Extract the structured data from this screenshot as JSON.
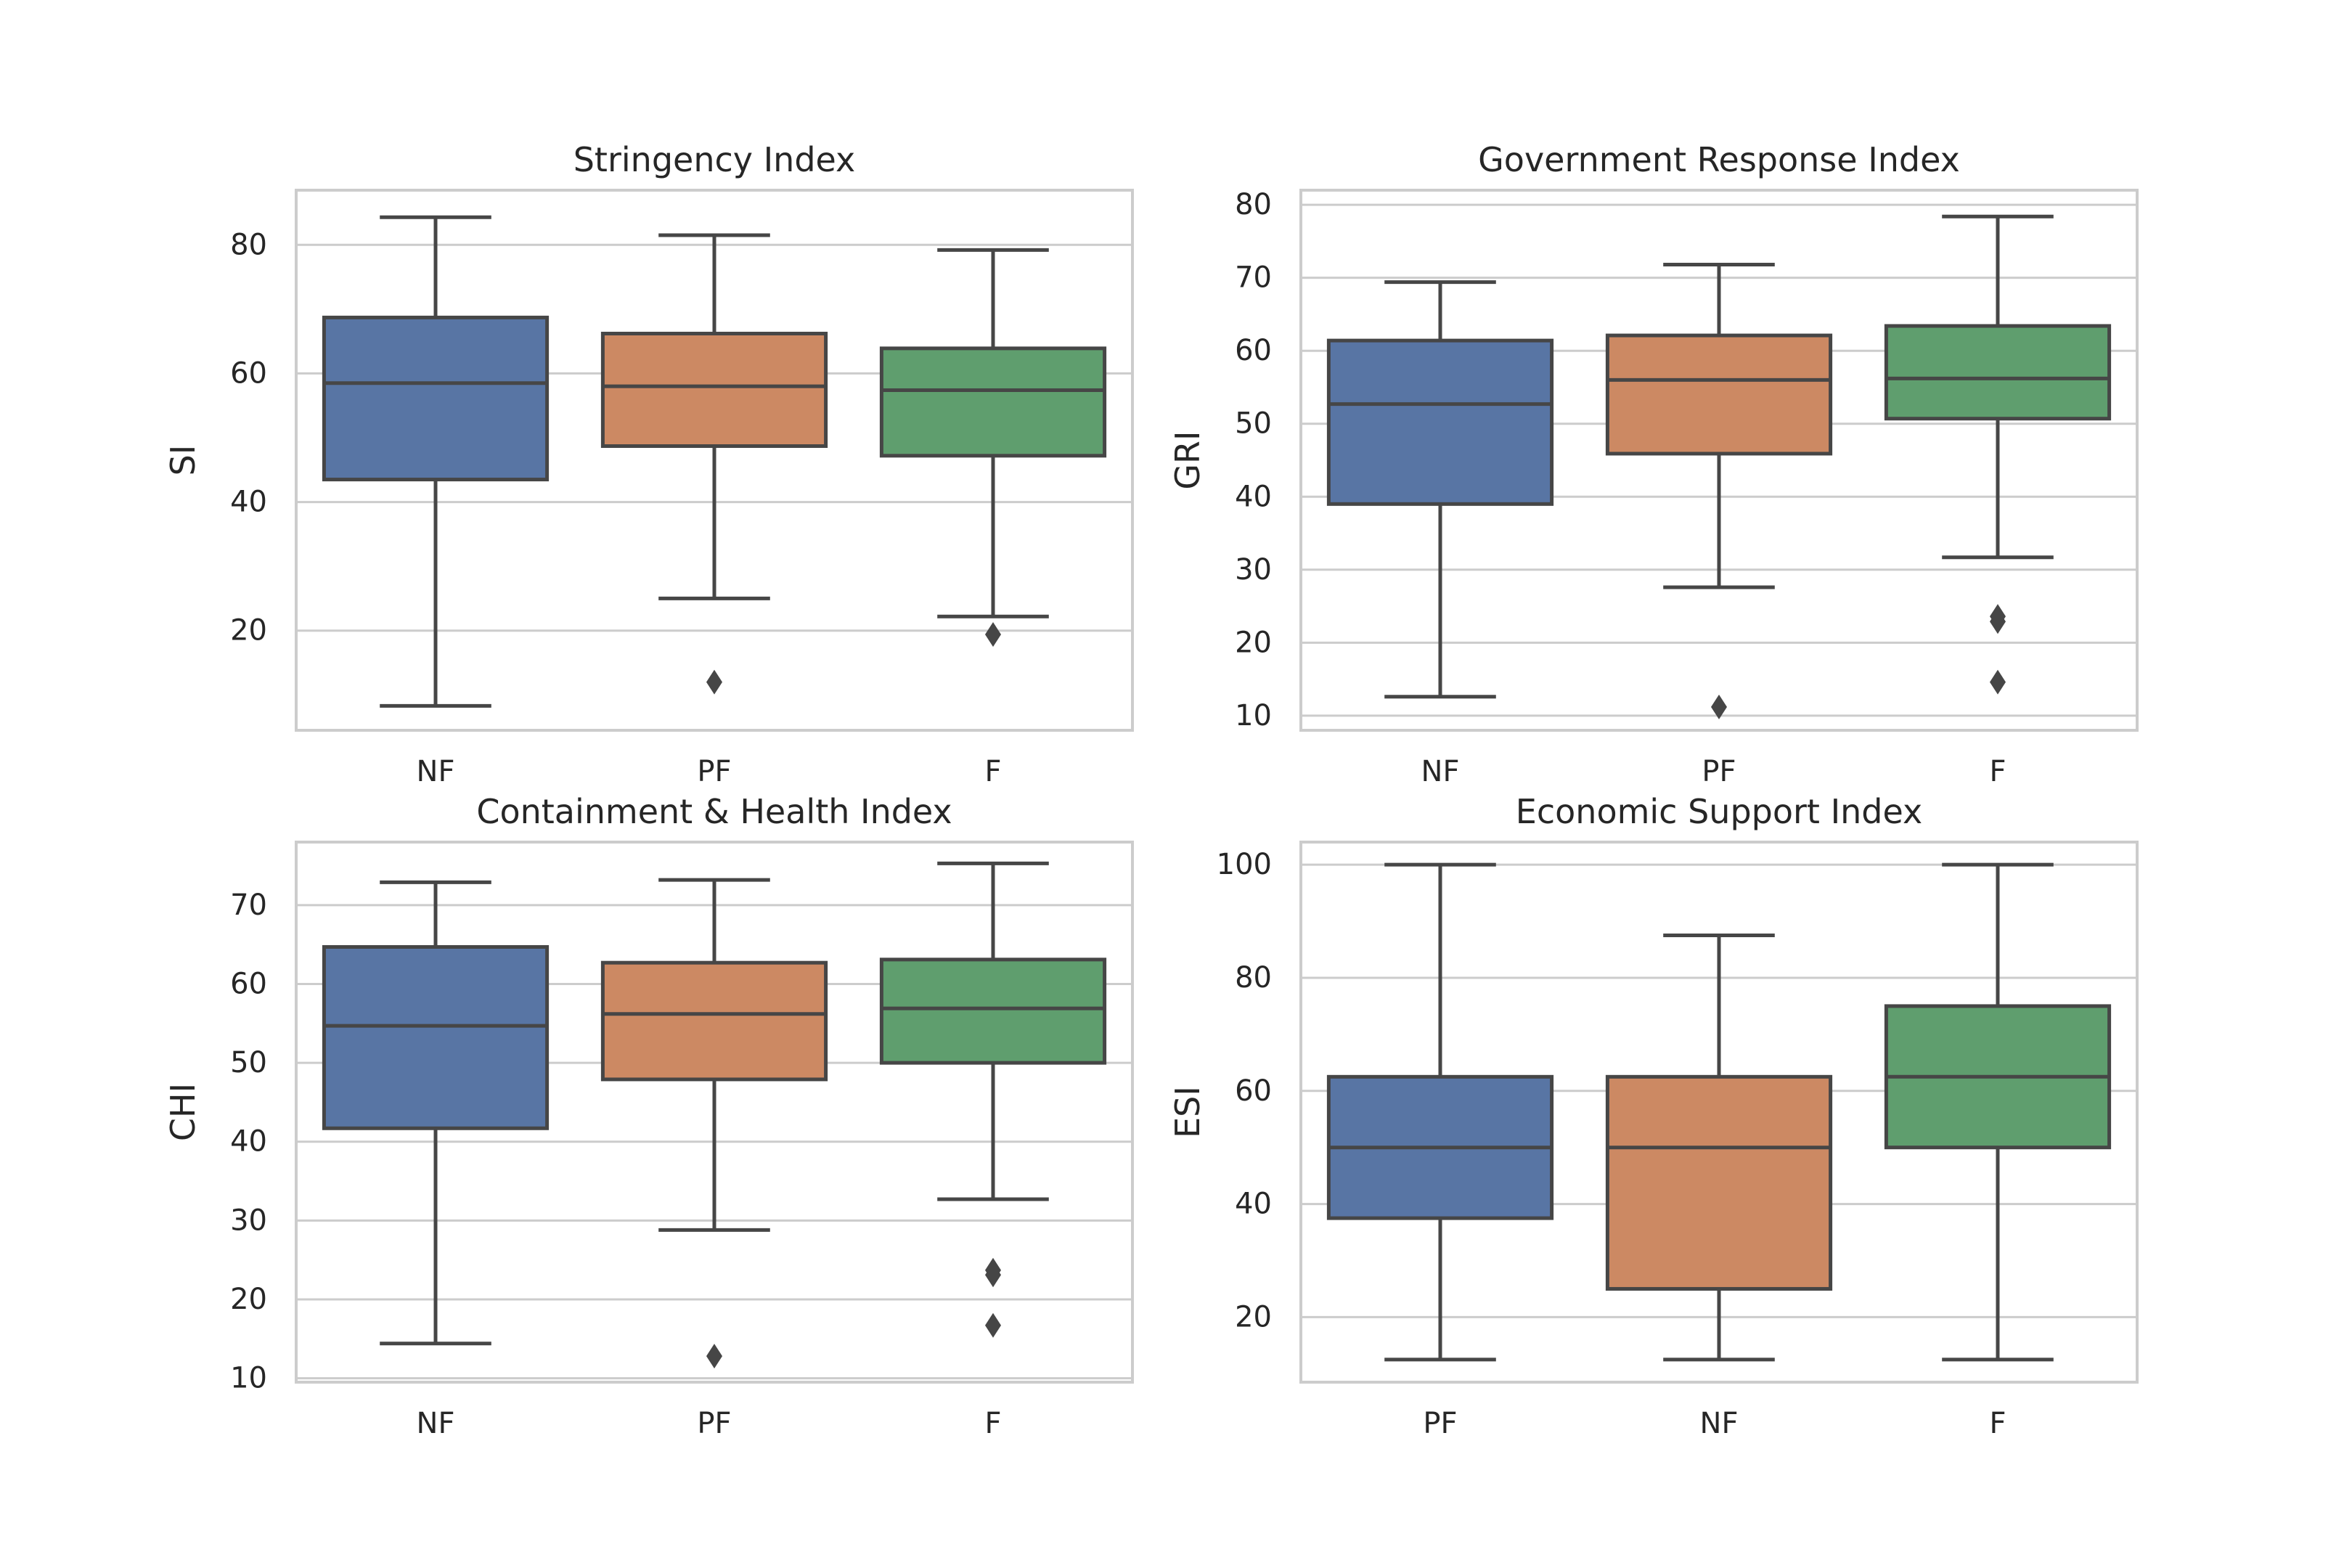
{
  "chart_data": [
    {
      "type": "box",
      "title": "Stringency Index",
      "xlabel": "",
      "ylabel": "SI",
      "ylim": [
        4.5,
        88.5
      ],
      "yticks": [
        20,
        40,
        60,
        80
      ],
      "grid": true,
      "categories": [
        "NF",
        "PF",
        "F"
      ],
      "colors": [
        "#5875a4",
        "#cc8963",
        "#5f9e6e"
      ],
      "boxes": [
        {
          "whisker_low": 8.3,
          "q1": 43.5,
          "median": 58.5,
          "q3": 68.7,
          "whisker_high": 84.3,
          "outliers": []
        },
        {
          "whisker_low": 25.0,
          "q1": 48.7,
          "median": 58.0,
          "q3": 66.2,
          "whisker_high": 81.5,
          "outliers": [
            12.0
          ]
        },
        {
          "whisker_low": 22.2,
          "q1": 47.2,
          "median": 57.4,
          "q3": 63.9,
          "whisker_high": 79.2,
          "outliers": [
            19.4
          ]
        }
      ]
    },
    {
      "type": "box",
      "title": "Government Response Index",
      "xlabel": "",
      "ylabel": "GRI",
      "ylim": [
        8.0,
        82.0
      ],
      "yticks": [
        10,
        20,
        30,
        40,
        50,
        60,
        70,
        80
      ],
      "grid": true,
      "categories": [
        "NF",
        "PF",
        "F"
      ],
      "colors": [
        "#5875a4",
        "#cc8963",
        "#5f9e6e"
      ],
      "boxes": [
        {
          "whisker_low": 12.6,
          "q1": 39.0,
          "median": 52.7,
          "q3": 61.4,
          "whisker_high": 69.4,
          "outliers": []
        },
        {
          "whisker_low": 27.6,
          "q1": 45.9,
          "median": 56.0,
          "q3": 62.1,
          "whisker_high": 71.8,
          "outliers": [
            11.2
          ]
        },
        {
          "whisker_low": 31.7,
          "q1": 50.7,
          "median": 56.2,
          "q3": 63.4,
          "whisker_high": 78.4,
          "outliers": [
            23.6,
            22.9,
            14.6
          ]
        }
      ]
    },
    {
      "type": "box",
      "title": "Containment & Health Index",
      "xlabel": "",
      "ylabel": "CHI",
      "ylim": [
        9.5,
        78.0
      ],
      "yticks": [
        10,
        20,
        30,
        40,
        50,
        60,
        70
      ],
      "grid": true,
      "categories": [
        "NF",
        "PF",
        "F"
      ],
      "colors": [
        "#5875a4",
        "#cc8963",
        "#5f9e6e"
      ],
      "boxes": [
        {
          "whisker_low": 14.4,
          "q1": 41.7,
          "median": 54.7,
          "q3": 64.7,
          "whisker_high": 72.9,
          "outliers": []
        },
        {
          "whisker_low": 28.8,
          "q1": 47.9,
          "median": 56.2,
          "q3": 62.7,
          "whisker_high": 73.2,
          "outliers": [
            12.8
          ]
        },
        {
          "whisker_low": 32.7,
          "q1": 50.0,
          "median": 56.9,
          "q3": 63.1,
          "whisker_high": 75.3,
          "outliers": [
            23.7,
            23.1,
            16.7
          ]
        }
      ]
    },
    {
      "type": "box",
      "title": "Economic Support Index",
      "xlabel": "",
      "ylabel": "ESI",
      "ylim": [
        8.5,
        104.0
      ],
      "yticks": [
        20,
        40,
        60,
        80,
        100
      ],
      "grid": true,
      "categories": [
        "PF",
        "NF",
        "F"
      ],
      "colors": [
        "#5875a4",
        "#cc8963",
        "#5f9e6e"
      ],
      "boxes": [
        {
          "whisker_low": 12.5,
          "q1": 37.5,
          "median": 50.0,
          "q3": 62.5,
          "whisker_high": 100.0,
          "outliers": []
        },
        {
          "whisker_low": 12.5,
          "q1": 25.0,
          "median": 50.0,
          "q3": 62.5,
          "whisker_high": 87.5,
          "outliers": []
        },
        {
          "whisker_low": 12.5,
          "q1": 50.0,
          "median": 62.5,
          "q3": 75.0,
          "whisker_high": 100.0,
          "outliers": []
        }
      ]
    }
  ]
}
